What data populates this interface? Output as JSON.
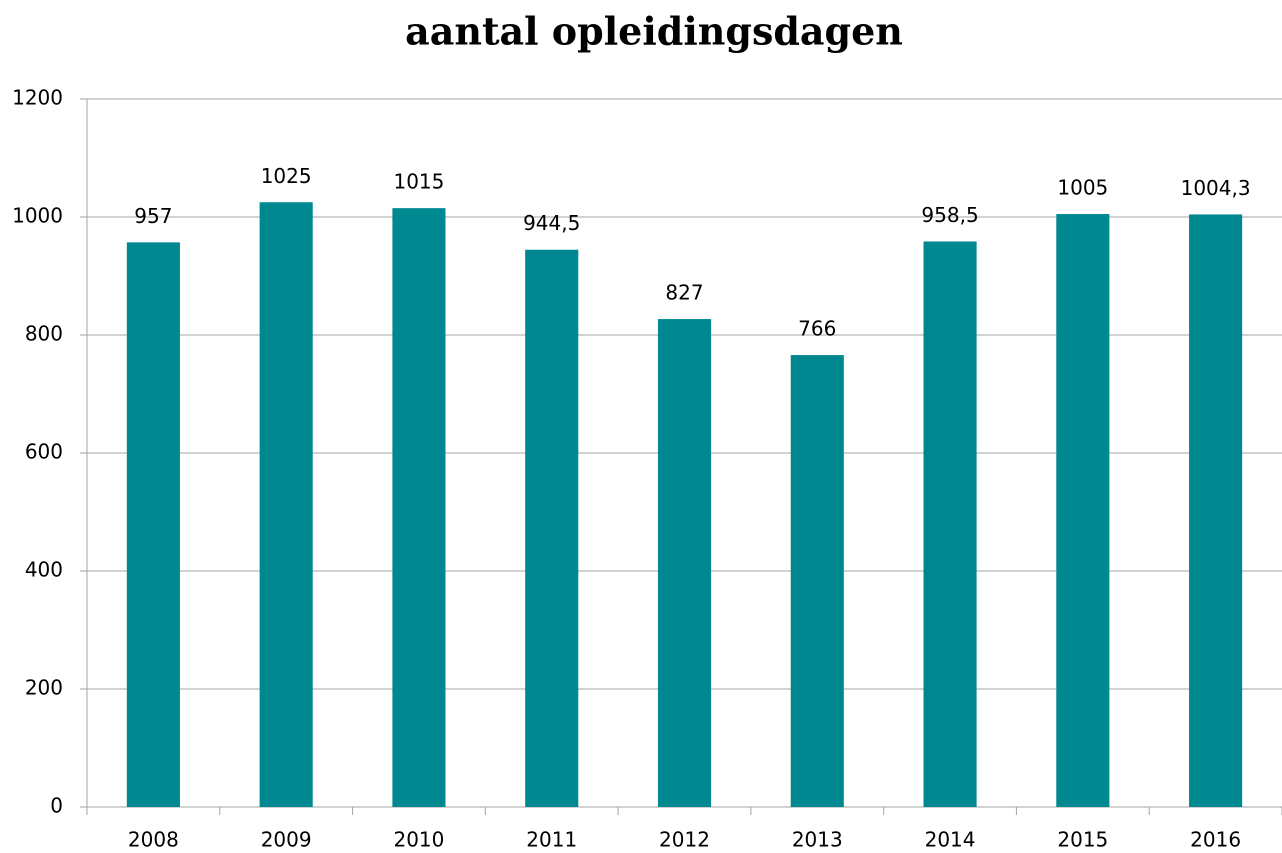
{
  "chart_data": {
    "type": "bar",
    "title": "aantal opleidingsdagen",
    "categories": [
      "2008",
      "2009",
      "2010",
      "2011",
      "2012",
      "2013",
      "2014",
      "2015",
      "2016"
    ],
    "values": [
      957,
      1025,
      1015,
      944.5,
      827,
      766,
      958.5,
      1005,
      1004.3
    ],
    "value_labels": [
      "957",
      "1025",
      "1015",
      "944,5",
      "827",
      "766",
      "958,5",
      "1005",
      "1004,3"
    ],
    "color": "#008891",
    "ylim": [
      0,
      1200
    ],
    "yticks": [
      0,
      200,
      400,
      600,
      800,
      1000,
      1200
    ],
    "grid": true
  }
}
